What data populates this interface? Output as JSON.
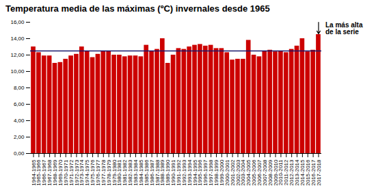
{
  "chart_data": {
    "type": "bar",
    "title": "Temperatura media de las máximas (ºC) invernales desde 1965",
    "annotation": "La más alta\nde la serie",
    "color": "#cc0000",
    "mean_line": {
      "value": 12.5,
      "color": "#1a1a6e"
    },
    "ylim": [
      0,
      16
    ],
    "yticks": [
      {
        "value": 0,
        "label": "0,00"
      },
      {
        "value": 2,
        "label": "2,00"
      },
      {
        "value": 4,
        "label": "4,00"
      },
      {
        "value": 6,
        "label": "6,00"
      },
      {
        "value": 8,
        "label": "8,00"
      },
      {
        "value": 10,
        "label": "10,00"
      },
      {
        "value": 12,
        "label": "12,00"
      },
      {
        "value": 14,
        "label": "14,00"
      },
      {
        "value": 16,
        "label": "16,00"
      }
    ],
    "grid": false,
    "categories": [
      "1964-1965",
      "1965-1966",
      "1966-1967",
      "1967-1968",
      "1968-1969",
      "1969-1970",
      "1970-1971",
      "1971-1972",
      "1972-1973",
      "1973-1974",
      "1974-1975",
      "1975-1976",
      "1976-1977",
      "1977-1978",
      "1978-1979",
      "1979-1980",
      "1980-1981",
      "1981-1982",
      "1982-1983",
      "1983-1984",
      "1984-1985",
      "1985-1986",
      "1986-1987",
      "1987-1988",
      "1988-1989",
      "1989-1990",
      "1990-1991",
      "1991-1992",
      "1992-1993",
      "1993-1994",
      "1994-1995",
      "1995-1996",
      "1996-1997",
      "1997-1998",
      "1998-1999",
      "1999-2000",
      "2000-2001",
      "2001-2002",
      "2002-2003",
      "2003-2004",
      "2004-2005",
      "2005-2006",
      "2006-2007",
      "2007-2008",
      "2008-2009",
      "2009-2010",
      "2010-2011",
      "2011-2012",
      "2012-2013",
      "2013-2014",
      "2014-2015",
      "2015-2016",
      "2016-2017",
      "2017-2018"
    ],
    "values": [
      13.0,
      12.3,
      11.9,
      11.9,
      11.0,
      11.1,
      11.5,
      11.9,
      12.1,
      13.0,
      12.5,
      11.7,
      12.1,
      12.5,
      12.5,
      12.0,
      12.0,
      11.8,
      11.9,
      11.9,
      11.8,
      13.2,
      12.5,
      12.7,
      14.0,
      11.0,
      12.0,
      12.8,
      12.7,
      13.0,
      13.2,
      13.3,
      13.1,
      13.2,
      12.8,
      12.8,
      12.3,
      11.4,
      11.5,
      11.5,
      13.8,
      12.0,
      11.8,
      12.5,
      12.6,
      12.4,
      12.5,
      12.3,
      12.7,
      13.1,
      14.0,
      12.4,
      12.6,
      14.5
    ]
  }
}
